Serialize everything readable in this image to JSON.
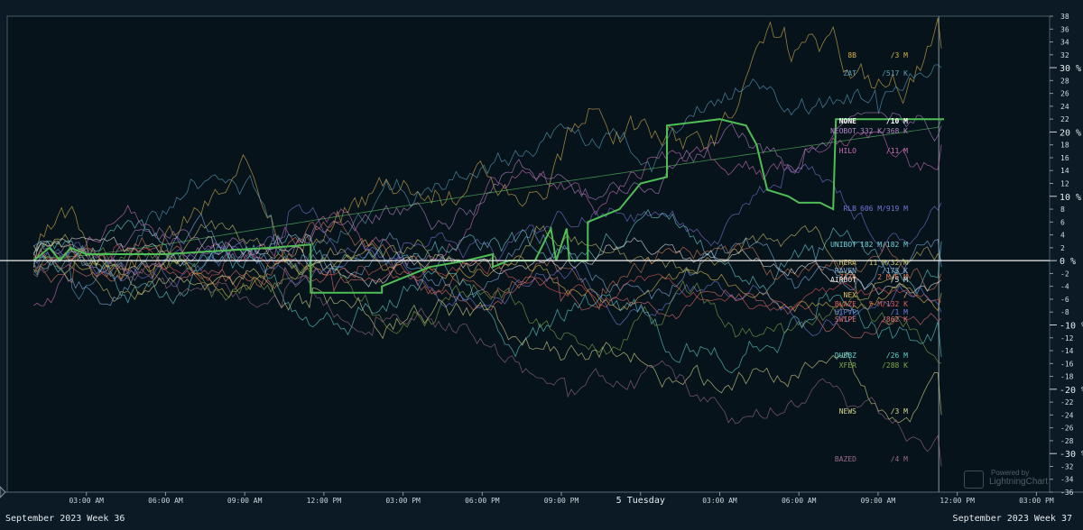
{
  "chart_data": {
    "type": "line",
    "y_axis": {
      "unit": "%",
      "range": [
        -36,
        38
      ],
      "minor_ticks": [
        38,
        36,
        34,
        32,
        28,
        26,
        24,
        22,
        18,
        16,
        14,
        12,
        8,
        6,
        4,
        2,
        -2,
        -4,
        -6,
        -8,
        -12,
        -14,
        -16,
        -18,
        -22,
        -24,
        -26,
        -28,
        -32,
        -34,
        -36
      ],
      "major_ticks": [
        {
          "value": 30,
          "label": "30 %"
        },
        {
          "value": 20,
          "label": "20 %"
        },
        {
          "value": 10,
          "label": "10 %"
        },
        {
          "value": 0,
          "label": "0 %"
        },
        {
          "value": -10,
          "label": "-10 %"
        },
        {
          "value": -20,
          "label": "-20 %"
        },
        {
          "value": -30,
          "label": "-30 %"
        }
      ]
    },
    "x_axis": {
      "ticks": [
        "03:00 AM",
        "06:00 AM",
        "09:00 AM",
        "12:00 PM",
        "03:00 PM",
        "06:00 PM",
        "09:00 PM",
        "5 Tuesday",
        "03:00 AM",
        "06:00 AM",
        "09:00 AM",
        "12:00 PM",
        "03:00 PM",
        "06:00 PM"
      ],
      "range_hours": [
        0,
        39.5
      ],
      "cursor_hour": 35.3
    },
    "week_left": "September 2023 Week 36",
    "week_right": "September 2023 Week 37",
    "series": [
      {
        "name": "8B",
        "info": "/3 M",
        "color": "#d6b04a",
        "end": 33,
        "min": -4,
        "max": 44,
        "phase": 1.3,
        "trend": 0.9,
        "vol": 1.3
      },
      {
        "name": "ZAT",
        "info": "/517 K",
        "color": "#5aa0bd",
        "end": 30,
        "min": -10,
        "max": 33,
        "phase": 2.1,
        "trend": 0.8,
        "vol": 1.0
      },
      {
        "name": "NONE",
        "info": "/10 M",
        "color": "#56c05e",
        "end": 22,
        "min": -5,
        "max": 23,
        "phase": 0,
        "trend": 0,
        "vol": 0
      },
      {
        "name": "NEOBOT",
        "info": "332 K/368 K",
        "color": "#b585c8",
        "end": 21,
        "min": -6,
        "max": 23,
        "phase": 3.4,
        "trend": 0.7,
        "vol": 0.8
      },
      {
        "name": "HILO",
        "info": "/11 M",
        "color": "#cf6fb6",
        "end": 18,
        "min": -7,
        "max": 20,
        "phase": 4.6,
        "trend": 0.6,
        "vol": 0.9
      },
      {
        "name": "RLB",
        "info": "606 M/919 M",
        "color": "#7b72d4",
        "end": 9,
        "min": -4,
        "max": 15,
        "phase": 0.7,
        "trend": 0.5,
        "vol": 0.8
      },
      {
        "name": "UNIBOT",
        "info": "182 M/182 M",
        "color": "#6ed0d8",
        "end": 3,
        "min": -8,
        "max": 12,
        "phase": 5.2,
        "trend": 0.3,
        "vol": 0.9
      },
      {
        "name": "HERA",
        "info": "11 M/32 M",
        "color": "#c9c36a",
        "end": 0,
        "min": -8,
        "max": 9,
        "phase": 1.9,
        "trend": 0.2,
        "vol": 0.8
      },
      {
        "name": "RAVEN",
        "info": "/173 K",
        "color": "#7fb2e6",
        "end": -1,
        "min": -10,
        "max": 8,
        "phase": 2.8,
        "trend": 0.2,
        "vol": 0.9
      },
      {
        "name": "ZAZA",
        "info": "2 M/5 M",
        "color": "#d97a55",
        "end": -2,
        "min": -9,
        "max": 6,
        "phase": 3.9,
        "trend": 0.1,
        "vol": 0.8
      },
      {
        "name": "AIRBOT",
        "info": "/5 M",
        "color": "#e6e6e6",
        "end": -3,
        "min": -7,
        "max": 5,
        "phase": 0.4,
        "trend": 0.1,
        "vol": 0.6
      },
      {
        "name": "NEX",
        "info": "/",
        "color": "#e3c050",
        "end": -5,
        "min": -9,
        "max": 4,
        "phase": 4.2,
        "trend": 0.0,
        "vol": 0.6
      },
      {
        "name": "BLAZE",
        "info": "5 M/132 K",
        "color": "#e05a5a",
        "end": -6.5,
        "min": -8,
        "max": 3,
        "phase": 5.6,
        "trend": -0.1,
        "vol": 0.5
      },
      {
        "name": "HIPVP",
        "info": "/1 M",
        "color": "#6f7fe0",
        "end": -8,
        "min": -12,
        "max": 3,
        "phase": 2.4,
        "trend": -0.2,
        "vol": 0.7
      },
      {
        "name": "SWIPE",
        "info": "/862 K",
        "color": "#e07070",
        "end": -9,
        "min": -12,
        "max": 2,
        "phase": 3.1,
        "trend": -0.2,
        "vol": 0.6
      },
      {
        "name": "DUBBZ",
        "info": "/26 M",
        "color": "#5fd0d0",
        "end": -15,
        "min": -20,
        "max": 3,
        "phase": 1.1,
        "trend": -0.4,
        "vol": 1.0
      },
      {
        "name": "XFER",
        "info": "/288 K",
        "color": "#7fa848",
        "end": -16,
        "min": -20,
        "max": 2,
        "phase": 4.8,
        "trend": -0.4,
        "vol": 0.9
      },
      {
        "name": "NEWS",
        "info": "/3 M",
        "color": "#d8d88a",
        "end": -24,
        "min": -26,
        "max": 3,
        "phase": 0.2,
        "trend": -0.6,
        "vol": 0.9
      },
      {
        "name": "BAZED",
        "info": "/4 M",
        "color": "#9a6b88",
        "end": -32,
        "min": -34,
        "max": 2,
        "phase": 5.9,
        "trend": -0.8,
        "vol": 0.8
      }
    ],
    "highlight": {
      "name": "NONE",
      "points": [
        [
          1,
          0
        ],
        [
          1.6,
          2
        ],
        [
          2,
          0
        ],
        [
          2.4,
          2
        ],
        [
          3,
          1
        ],
        [
          4,
          1
        ],
        [
          6,
          1
        ],
        [
          8,
          1.5
        ],
        [
          10,
          2
        ],
        [
          11.5,
          2.5
        ],
        [
          11.5,
          -5
        ],
        [
          13.5,
          -5
        ],
        [
          14.2,
          -5
        ],
        [
          14.2,
          -4
        ],
        [
          16,
          -1
        ],
        [
          17.4,
          0
        ],
        [
          18.4,
          1
        ],
        [
          18.4,
          -1
        ],
        [
          19,
          0
        ],
        [
          20,
          0
        ],
        [
          20.6,
          5
        ],
        [
          20.8,
          0
        ],
        [
          21.2,
          5
        ],
        [
          21.3,
          0
        ],
        [
          22,
          0
        ],
        [
          22,
          6
        ],
        [
          23.2,
          8
        ],
        [
          24,
          12
        ],
        [
          25,
          13
        ],
        [
          25,
          21
        ],
        [
          27,
          22
        ],
        [
          28,
          21
        ],
        [
          28.4,
          18
        ],
        [
          28.8,
          11
        ],
        [
          29.6,
          10
        ],
        [
          30,
          9
        ],
        [
          30.8,
          9
        ],
        [
          31.3,
          8
        ],
        [
          31.4,
          22
        ],
        [
          34,
          22
        ],
        [
          35.5,
          22
        ]
      ]
    },
    "grid": false,
    "legend": "labels at right edge of plot"
  },
  "watermark": {
    "line1": "Powered by",
    "line2": "LightningChart"
  }
}
